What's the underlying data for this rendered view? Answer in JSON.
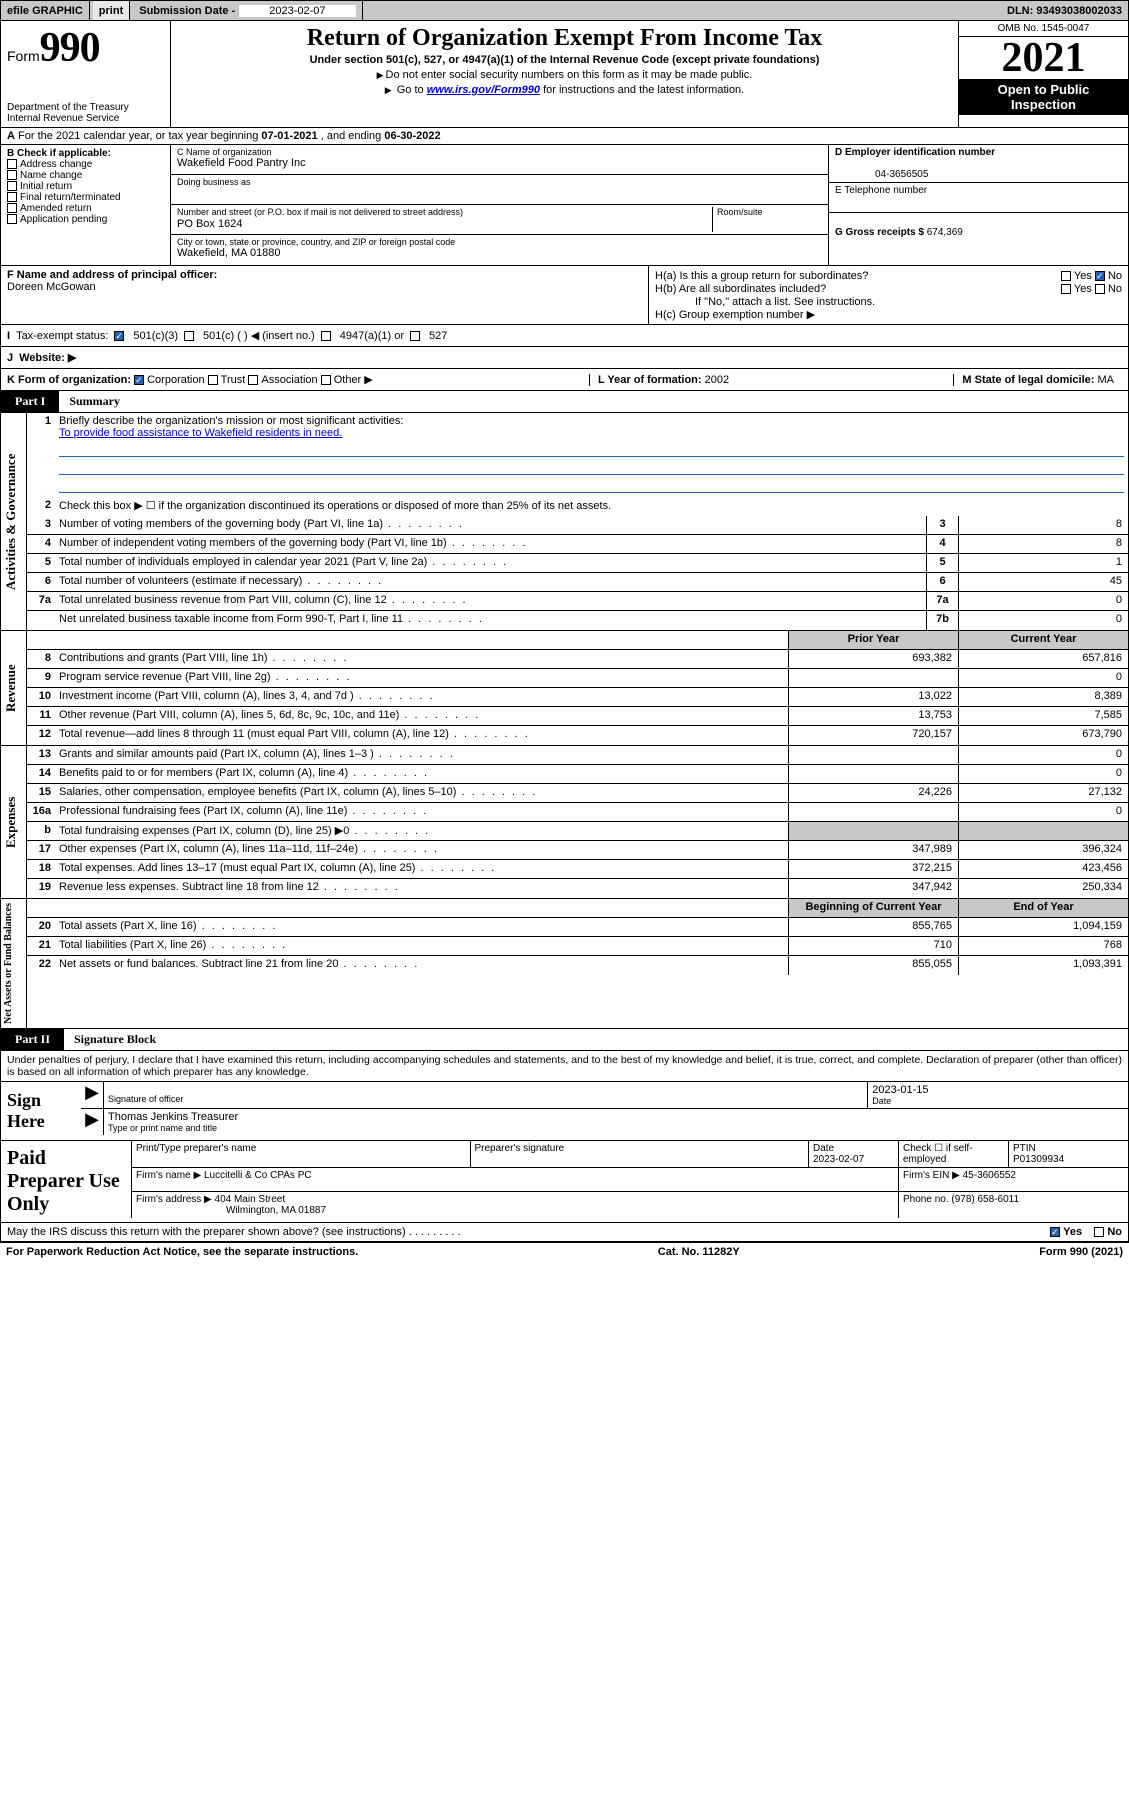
{
  "topbar": {
    "efile": "efile GRAPHIC",
    "print": "print",
    "subdate_lbl": "Submission Date - ",
    "subdate": "2023-02-07",
    "dln": "DLN: 93493038002033"
  },
  "header": {
    "form_word": "Form",
    "form_num": "990",
    "dept": "Department of the Treasury",
    "irs": "Internal Revenue Service",
    "title": "Return of Organization Exempt From Income Tax",
    "sub": "Under section 501(c), 527, or 4947(a)(1) of the Internal Revenue Code (except private foundations)",
    "note1": "Do not enter social security numbers on this form as it may be made public.",
    "note2_pre": "Go to ",
    "note2_link": "www.irs.gov/Form990",
    "note2_post": " for instructions and the latest information.",
    "omb": "OMB No. 1545-0047",
    "year": "2021",
    "open1": "Open to Public",
    "open2": "Inspection"
  },
  "row_a": {
    "pre": "For the 2021 calendar year, or tax year beginning ",
    "beg": "07-01-2021",
    "mid": " , and ending ",
    "end": "06-30-2022"
  },
  "col_b": {
    "hdr": "B Check if applicable:",
    "items": [
      "Address change",
      "Name change",
      "Initial return",
      "Final return/terminated",
      "Amended return",
      "Application pending"
    ]
  },
  "box_c": {
    "name_lbl": "C Name of organization",
    "name": "Wakefield Food Pantry Inc",
    "dba_lbl": "Doing business as",
    "dba": "",
    "addr_lbl": "Number and street (or P.O. box if mail is not delivered to street address)",
    "room_lbl": "Room/suite",
    "addr": "PO Box 1624",
    "city_lbl": "City or town, state or province, country, and ZIP or foreign postal code",
    "city": "Wakefield, MA  01880"
  },
  "box_de": {
    "d_lbl": "D Employer identification number",
    "ein": "04-3656505",
    "e_lbl": "E Telephone number",
    "phone": "",
    "g_lbl": "G Gross receipts $ ",
    "g_val": "674,369"
  },
  "blk_fh": {
    "f_lbl": "F Name and address of principal officer:",
    "f_name": "Doreen McGowan",
    "ha_lbl": "H(a)  Is this a group return for subordinates?",
    "hb_lbl": "H(b)  Are all subordinates included?",
    "hb_note": "If \"No,\" attach a list. See instructions.",
    "hc_lbl": "H(c)  Group exemption number ▶",
    "yes": "Yes",
    "no": "No"
  },
  "row_i": {
    "lbl": "Tax-exempt status:",
    "o1": "501(c)(3)",
    "o2": "501(c) (   ) ◀ (insert no.)",
    "o3": "4947(a)(1) or",
    "o4": "527"
  },
  "row_j": {
    "lbl": "Website: ▶"
  },
  "row_k": {
    "k_lbl": "K Form of organization:",
    "k_opts": [
      "Corporation",
      "Trust",
      "Association",
      "Other ▶"
    ],
    "l_lbl": "L Year of formation: ",
    "l_val": "2002",
    "m_lbl": "M State of legal domicile: ",
    "m_val": "MA"
  },
  "part1": {
    "lbl": "Part I",
    "ttl": "Summary"
  },
  "summary": {
    "q1": "Briefly describe the organization's mission or most significant activities:",
    "q1_ans": "To provide food assistance to Wakefield residents in need.",
    "q2": "Check this box ▶ ☐  if the organization discontinued its operations or disposed of more than 25% of its net assets.",
    "rows_gov": [
      {
        "n": "3",
        "t": "Number of voting members of the governing body (Part VI, line 1a)",
        "b": "3",
        "v": "8"
      },
      {
        "n": "4",
        "t": "Number of independent voting members of the governing body (Part VI, line 1b)",
        "b": "4",
        "v": "8"
      },
      {
        "n": "5",
        "t": "Total number of individuals employed in calendar year 2021 (Part V, line 2a)",
        "b": "5",
        "v": "1"
      },
      {
        "n": "6",
        "t": "Total number of volunteers (estimate if necessary)",
        "b": "6",
        "v": "45"
      },
      {
        "n": "7a",
        "t": "Total unrelated business revenue from Part VIII, column (C), line 12",
        "b": "7a",
        "v": "0"
      },
      {
        "n": "",
        "t": "Net unrelated business taxable income from Form 990-T, Part I, line 11",
        "b": "7b",
        "v": "0"
      }
    ],
    "hdr_b": "b",
    "prior": "Prior Year",
    "current": "Current Year",
    "rows_rev": [
      {
        "n": "8",
        "t": "Contributions and grants (Part VIII, line 1h)",
        "p": "693,382",
        "c": "657,816"
      },
      {
        "n": "9",
        "t": "Program service revenue (Part VIII, line 2g)",
        "p": "",
        "c": "0"
      },
      {
        "n": "10",
        "t": "Investment income (Part VIII, column (A), lines 3, 4, and 7d )",
        "p": "13,022",
        "c": "8,389"
      },
      {
        "n": "11",
        "t": "Other revenue (Part VIII, column (A), lines 5, 6d, 8c, 9c, 10c, and 11e)",
        "p": "13,753",
        "c": "7,585"
      },
      {
        "n": "12",
        "t": "Total revenue—add lines 8 through 11 (must equal Part VIII, column (A), line 12)",
        "p": "720,157",
        "c": "673,790"
      }
    ],
    "rows_exp": [
      {
        "n": "13",
        "t": "Grants and similar amounts paid (Part IX, column (A), lines 1–3 )",
        "p": "",
        "c": "0"
      },
      {
        "n": "14",
        "t": "Benefits paid to or for members (Part IX, column (A), line 4)",
        "p": "",
        "c": "0"
      },
      {
        "n": "15",
        "t": "Salaries, other compensation, employee benefits (Part IX, column (A), lines 5–10)",
        "p": "24,226",
        "c": "27,132"
      },
      {
        "n": "16a",
        "t": "Professional fundraising fees (Part IX, column (A), line 11e)",
        "p": "",
        "c": "0"
      },
      {
        "n": "b",
        "t": "Total fundraising expenses (Part IX, column (D), line 25) ▶0",
        "p": "__shade__",
        "c": "__shade__"
      },
      {
        "n": "17",
        "t": "Other expenses (Part IX, column (A), lines 11a–11d, 11f–24e)",
        "p": "347,989",
        "c": "396,324"
      },
      {
        "n": "18",
        "t": "Total expenses. Add lines 13–17 (must equal Part IX, column (A), line 25)",
        "p": "372,215",
        "c": "423,456"
      },
      {
        "n": "19",
        "t": "Revenue less expenses. Subtract line 18 from line 12",
        "p": "347,942",
        "c": "250,334"
      }
    ],
    "beg": "Beginning of Current Year",
    "end": "End of Year",
    "rows_net": [
      {
        "n": "20",
        "t": "Total assets (Part X, line 16)",
        "p": "855,765",
        "c": "1,094,159"
      },
      {
        "n": "21",
        "t": "Total liabilities (Part X, line 26)",
        "p": "710",
        "c": "768"
      },
      {
        "n": "22",
        "t": "Net assets or fund balances. Subtract line 21 from line 20",
        "p": "855,055",
        "c": "1,093,391"
      }
    ]
  },
  "sides": {
    "gov": "Activities & Governance",
    "rev": "Revenue",
    "exp": "Expenses",
    "net": "Net Assets or Fund Balances"
  },
  "part2": {
    "lbl": "Part II",
    "ttl": "Signature Block"
  },
  "sig": {
    "decl": "Under penalties of perjury, I declare that I have examined this return, including accompanying schedules and statements, and to the best of my knowledge and belief, it is true, correct, and complete. Declaration of preparer (other than officer) is based on all information of which preparer has any knowledge.",
    "sign_here": "Sign Here",
    "sig_of": "Signature of officer",
    "date_lbl": "Date",
    "date": "2023-01-15",
    "name": "Thomas Jenkins Treasurer",
    "name_lbl": "Type or print name and title"
  },
  "paid": {
    "lbl": "Paid Preparer Use Only",
    "h1": "Print/Type preparer's name",
    "h2": "Preparer's signature",
    "h3": "Date",
    "h3v": "2023-02-07",
    "h4": "Check ☐ if self-employed",
    "h5": "PTIN",
    "h5v": "P01309934",
    "firm_name_lbl": "Firm's name    ▶ ",
    "firm_name": "Luccitelli & Co CPAs PC",
    "firm_ein_lbl": "Firm's EIN ▶ ",
    "firm_ein": "45-3606552",
    "firm_addr_lbl": "Firm's address ▶ ",
    "firm_addr1": "404 Main Street",
    "firm_addr2": "Wilmington, MA  01887",
    "phone_lbl": "Phone no. ",
    "phone": "(978) 658-6011"
  },
  "discuss": {
    "q": "May the IRS discuss this return with the preparer shown above? (see instructions)",
    "yes": "Yes",
    "no": "No"
  },
  "footer": {
    "l": "For Paperwork Reduction Act Notice, see the separate instructions.",
    "m": "Cat. No. 11282Y",
    "r": "Form 990 (2021)"
  }
}
